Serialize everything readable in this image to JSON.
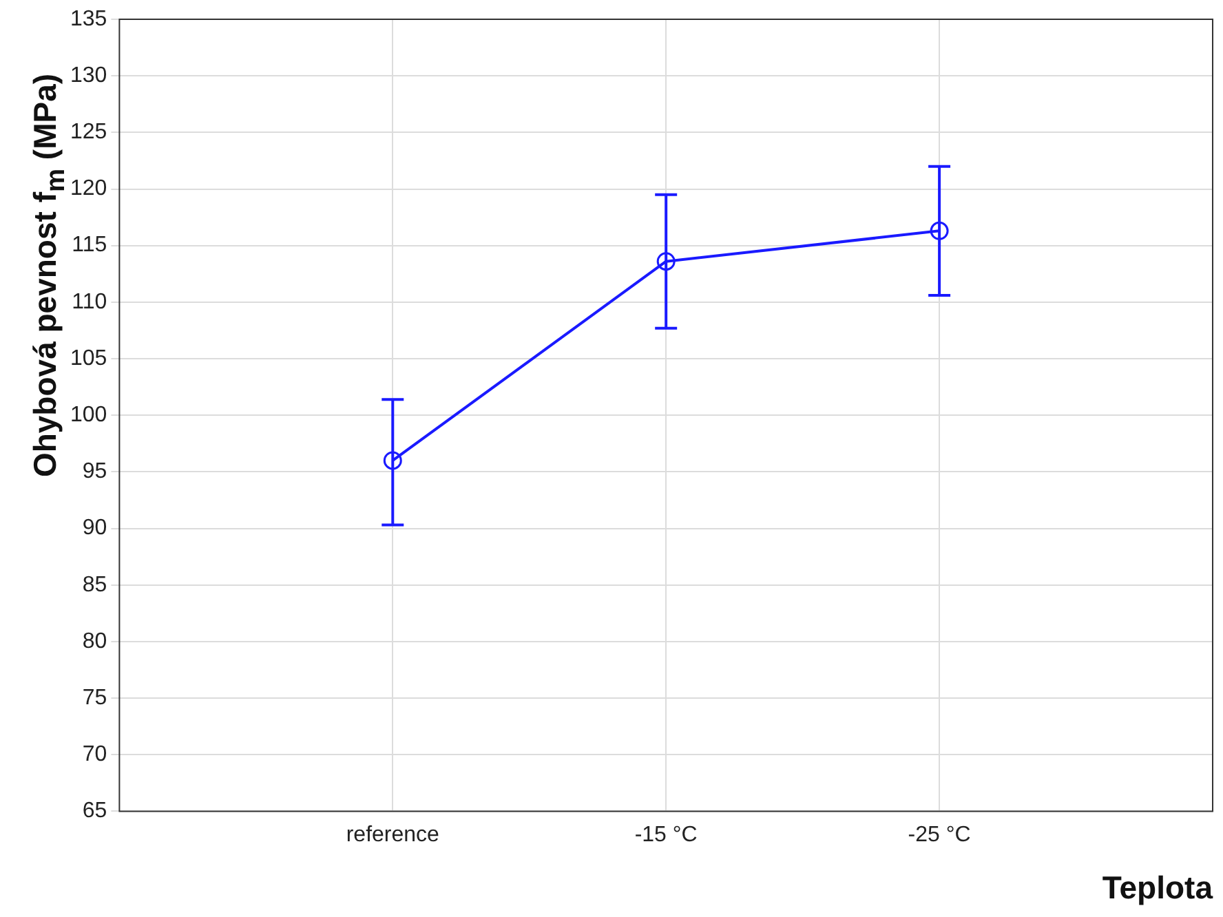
{
  "chart_data": {
    "type": "line",
    "xlabel": "Teplota",
    "ylabel": "Ohybová pevnost f$_{m}$ (MPa)",
    "categories": [
      "reference",
      "-15 °C",
      "-25 °C"
    ],
    "series": [
      {
        "color": "#1a1aff",
        "values": [
          96.0,
          113.6,
          116.3
        ],
        "errors": [
          [
            90.3,
            101.4
          ],
          [
            107.7,
            119.5
          ],
          [
            110.6,
            122.0
          ]
        ]
      }
    ],
    "ylim": [
      65,
      135
    ],
    "yticks": [
      65,
      70,
      75,
      80,
      85,
      90,
      95,
      100,
      105,
      110,
      115,
      120,
      125,
      130,
      135
    ],
    "grid": true,
    "marker": "circle",
    "line_style": "solid",
    "legend": false
  }
}
